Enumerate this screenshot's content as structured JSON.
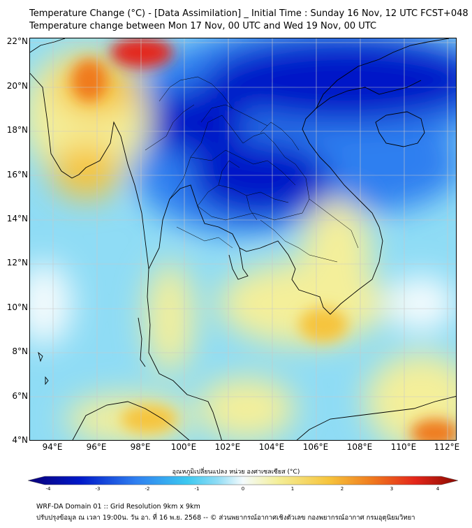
{
  "header": {
    "title_line1": "Temperature Change (°C) - [Data Assimilation] _ Initial Time : Sunday 16 Nov, 12 UTC FCST+048",
    "title_line2": "Temperature change between Mon 17 Nov, 00 UTC and Wed 19 Nov, 00 UTC"
  },
  "map": {
    "lat_labels": [
      "22°N",
      "20°N",
      "18°N",
      "16°N",
      "14°N",
      "12°N",
      "10°N",
      "8°N",
      "6°N",
      "4°N"
    ],
    "lon_labels": [
      "94°E",
      "96°E",
      "98°E",
      "100°E",
      "102°E",
      "104°E",
      "106°E",
      "108°E",
      "110°E",
      "112°E"
    ],
    "colors": {
      "strong_cool": "#0018c8",
      "cool": "#2f7ff0",
      "light_cool": "#8fdcf5",
      "neutral": "#f4fbfd",
      "light_warm": "#f4ef9a",
      "warm": "#f6c43c",
      "hot": "#f07a1e",
      "very_hot": "#e4261a",
      "land_outline": "#000000",
      "grid": "#c8c8c8"
    }
  },
  "colorbar": {
    "title": "อุณหภูมิเปลี่ยนแปลง หน่วย องศาเซลเซียส (°C)",
    "ticks": [
      "-4",
      "-3",
      "-2",
      "-1",
      "0",
      "1",
      "2",
      "3",
      "4"
    ],
    "stops": [
      "#0a0078",
      "#0018c8",
      "#2f7ff0",
      "#3cc8f0",
      "#8fdcf5",
      "#f4fbfd",
      "#f4ef9a",
      "#f6c43c",
      "#f07a1e",
      "#e4261a",
      "#8a0a00"
    ]
  },
  "footer": {
    "line1": "WRF-DA Domain 01 :: Grid Resolution 9km x 9km",
    "line2": "ปรับปรุงข้อมูล ณ เวลา 19:00น. วัน อา. ที่ 16 พ.ย. 2568 -- © ส่วนพยากรณ์อากาศเชิงตัวเลข กองพยากรณ์อากาศ กรมอุตุนิยมวิทยา"
  }
}
